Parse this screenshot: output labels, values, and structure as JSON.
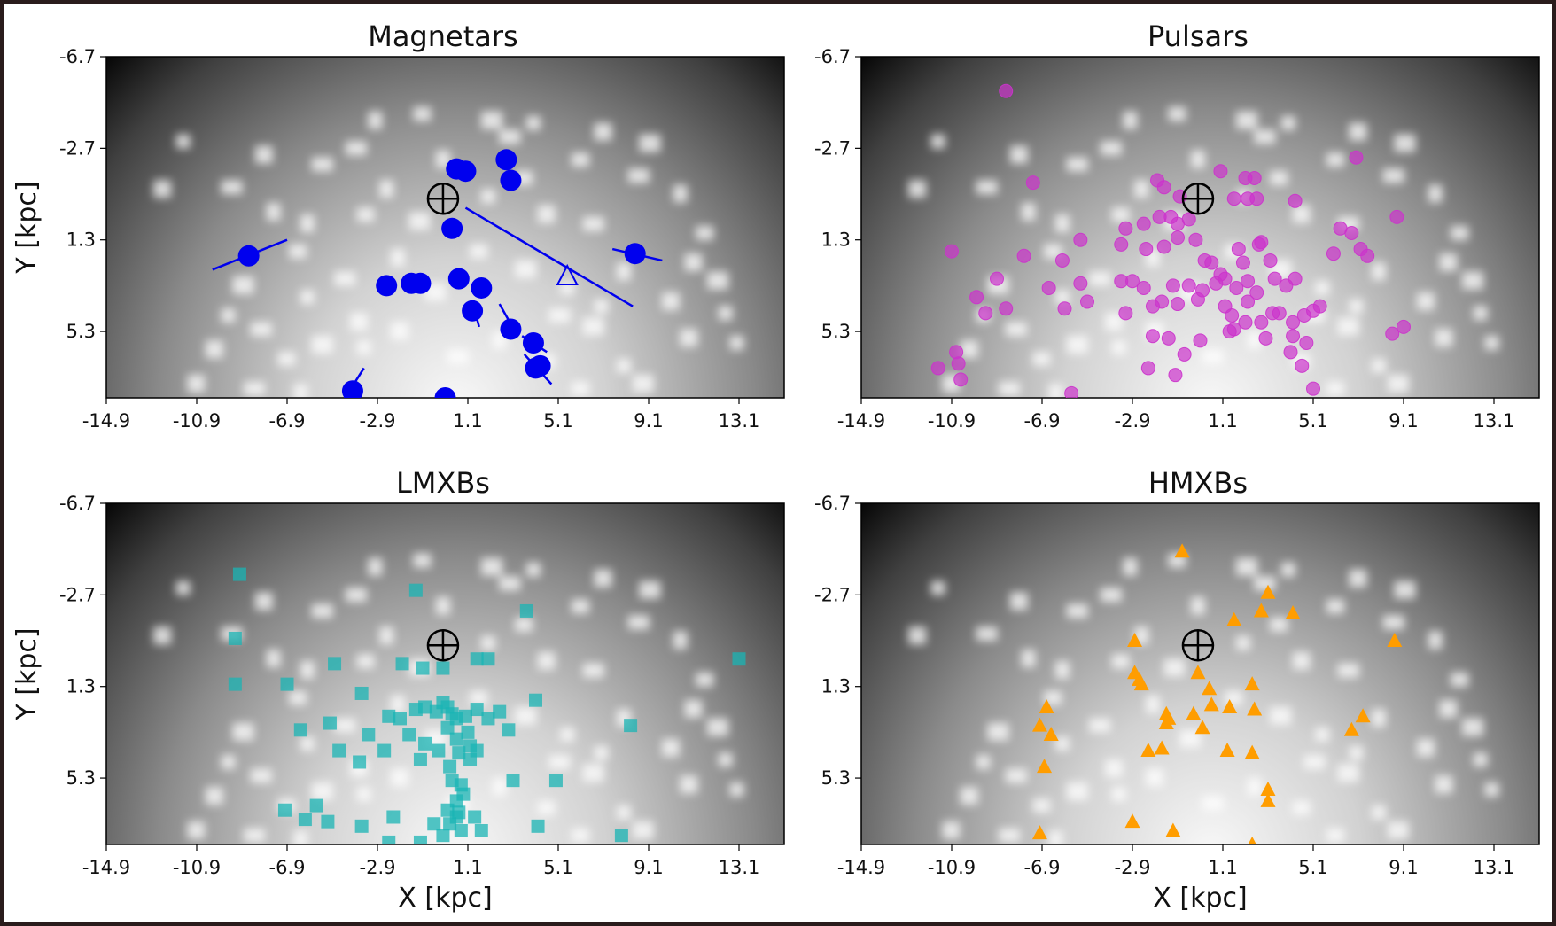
{
  "figure": {
    "xlabel": "X [kpc]",
    "ylabel": "Y [kpc]",
    "x_ticks": [
      "-14.9",
      "-10.9",
      "-6.9",
      "-2.9",
      "1.1",
      "5.1",
      "9.1",
      "13.1"
    ],
    "y_ticks": [
      "-6.7",
      "-2.7",
      "1.3",
      "5.3"
    ]
  },
  "chart_data": [
    {
      "type": "scatter",
      "title": "Magnetars",
      "xlim": [
        -14.9,
        15.1
      ],
      "ylim": [
        8.2,
        -6.7
      ],
      "marker": "circle",
      "color": "#0000ee",
      "earth": {
        "x": 0.0,
        "y": -0.5
      },
      "points": [
        {
          "x": 0.6,
          "y": -1.8
        },
        {
          "x": 1.0,
          "y": -1.7
        },
        {
          "x": 2.8,
          "y": -2.2
        },
        {
          "x": 3.0,
          "y": -1.3
        },
        {
          "x": 0.4,
          "y": 0.8
        },
        {
          "x": -8.6,
          "y": 2.0
        },
        {
          "x": 8.5,
          "y": 1.9
        },
        {
          "x": -2.5,
          "y": 3.3
        },
        {
          "x": -1.4,
          "y": 3.2
        },
        {
          "x": -1.0,
          "y": 3.2
        },
        {
          "x": 0.7,
          "y": 3.0
        },
        {
          "x": 1.7,
          "y": 3.4
        },
        {
          "x": 1.3,
          "y": 4.4
        },
        {
          "x": 3.0,
          "y": 5.2
        },
        {
          "x": 4.0,
          "y": 5.8
        },
        {
          "x": 4.1,
          "y": 6.9
        },
        {
          "x": 4.3,
          "y": 6.8
        },
        {
          "x": -4.0,
          "y": 7.9
        },
        {
          "x": 0.1,
          "y": 8.2
        }
      ],
      "error_bars": [
        {
          "x1": -10.2,
          "y1": 2.6,
          "x2": -6.9,
          "y2": 1.3
        },
        {
          "x1": 7.5,
          "y1": 1.7,
          "x2": 9.7,
          "y2": 2.2
        },
        {
          "x1": -1.5,
          "y1": 3.6,
          "x2": -1.0,
          "y2": 2.8
        },
        {
          "x1": 1.3,
          "y1": 4.0,
          "x2": 1.6,
          "y2": 5.1
        },
        {
          "x1": 2.5,
          "y1": 4.1,
          "x2": 3.3,
          "y2": 5.5
        },
        {
          "x1": 3.5,
          "y1": 5.5,
          "x2": 4.6,
          "y2": 6.2
        },
        {
          "x1": 3.6,
          "y1": 6.3,
          "x2": 4.8,
          "y2": 7.6
        },
        {
          "x1": -4.4,
          "y1": 8.3,
          "x2": -3.5,
          "y2": 6.9
        }
      ],
      "limit_marker": {
        "x": 5.5,
        "y": 2.9
      },
      "limit_line": {
        "x1": 1.0,
        "y1": -0.1,
        "x2": 8.4,
        "y2": 4.2
      }
    },
    {
      "type": "scatter",
      "title": "Pulsars",
      "xlim": [
        -14.9,
        15.1
      ],
      "ylim": [
        8.2,
        -6.7
      ],
      "marker": "circle",
      "color": "#cc33cc",
      "earth": {
        "x": 0.0,
        "y": -0.5
      },
      "points": [
        {
          "x": -8.5,
          "y": -5.2
        },
        {
          "x": 7.0,
          "y": -2.3
        },
        {
          "x": -7.3,
          "y": -1.2
        },
        {
          "x": -1.8,
          "y": -1.3
        },
        {
          "x": 1.0,
          "y": -1.7
        },
        {
          "x": 2.1,
          "y": -1.4
        },
        {
          "x": 2.5,
          "y": -1.4
        },
        {
          "x": -1.5,
          "y": -1.0
        },
        {
          "x": 1.6,
          "y": -0.5
        },
        {
          "x": 2.2,
          "y": -0.5
        },
        {
          "x": 2.6,
          "y": -0.5
        },
        {
          "x": 4.3,
          "y": -0.4
        },
        {
          "x": -0.8,
          "y": -0.6
        },
        {
          "x": -1.7,
          "y": 0.3
        },
        {
          "x": -1.2,
          "y": 0.3
        },
        {
          "x": -0.9,
          "y": 0.6
        },
        {
          "x": -2.4,
          "y": 0.6
        },
        {
          "x": -0.4,
          "y": 0.4
        },
        {
          "x": -3.2,
          "y": 0.8
        },
        {
          "x": -5.2,
          "y": 1.3
        },
        {
          "x": 6.3,
          "y": 0.8
        },
        {
          "x": 6.8,
          "y": 1.0
        },
        {
          "x": 8.8,
          "y": 0.3
        },
        {
          "x": 2.8,
          "y": 1.4
        },
        {
          "x": -10.9,
          "y": 1.8
        },
        {
          "x": -7.7,
          "y": 2.0
        },
        {
          "x": -6.0,
          "y": 2.2
        },
        {
          "x": -3.4,
          "y": 1.5
        },
        {
          "x": -2.3,
          "y": 1.7
        },
        {
          "x": -1.5,
          "y": 1.6
        },
        {
          "x": -0.9,
          "y": 1.2
        },
        {
          "x": -0.1,
          "y": 1.3
        },
        {
          "x": 0.3,
          "y": 2.2
        },
        {
          "x": 0.6,
          "y": 2.3
        },
        {
          "x": 1.0,
          "y": 2.8
        },
        {
          "x": 1.8,
          "y": 1.7
        },
        {
          "x": 2.0,
          "y": 2.3
        },
        {
          "x": 2.7,
          "y": 1.5
        },
        {
          "x": 3.2,
          "y": 2.2
        },
        {
          "x": 6.0,
          "y": 1.9
        },
        {
          "x": 7.2,
          "y": 1.7
        },
        {
          "x": 7.5,
          "y": 2.0
        },
        {
          "x": -8.9,
          "y": 3.0
        },
        {
          "x": -9.8,
          "y": 3.8
        },
        {
          "x": -6.6,
          "y": 3.4
        },
        {
          "x": -5.2,
          "y": 3.2
        },
        {
          "x": -3.4,
          "y": 3.1
        },
        {
          "x": -2.9,
          "y": 3.1
        },
        {
          "x": -2.4,
          "y": 3.4
        },
        {
          "x": -1.1,
          "y": 3.3
        },
        {
          "x": -0.4,
          "y": 3.3
        },
        {
          "x": 0.2,
          "y": 3.5
        },
        {
          "x": 0.8,
          "y": 3.2
        },
        {
          "x": 1.2,
          "y": 3.0
        },
        {
          "x": 1.7,
          "y": 3.4
        },
        {
          "x": 2.2,
          "y": 3.1
        },
        {
          "x": 2.6,
          "y": 3.6
        },
        {
          "x": 3.4,
          "y": 3.0
        },
        {
          "x": 3.9,
          "y": 3.3
        },
        {
          "x": 4.3,
          "y": 3.0
        },
        {
          "x": 1.2,
          "y": 4.2
        },
        {
          "x": 2.2,
          "y": 4.0
        },
        {
          "x": 3.3,
          "y": 4.5
        },
        {
          "x": 4.7,
          "y": 4.6
        },
        {
          "x": 5.1,
          "y": 4.4
        },
        {
          "x": 5.4,
          "y": 4.2
        },
        {
          "x": -9.4,
          "y": 4.5
        },
        {
          "x": -8.5,
          "y": 4.3
        },
        {
          "x": -5.9,
          "y": 4.3
        },
        {
          "x": -4.9,
          "y": 4.0
        },
        {
          "x": -3.2,
          "y": 4.5
        },
        {
          "x": -2.0,
          "y": 4.2
        },
        {
          "x": -1.6,
          "y": 4.0
        },
        {
          "x": -0.9,
          "y": 4.1
        },
        {
          "x": 0.0,
          "y": 3.9
        },
        {
          "x": 1.5,
          "y": 4.6
        },
        {
          "x": 2.8,
          "y": 4.9
        },
        {
          "x": 3.6,
          "y": 4.5
        },
        {
          "x": 4.2,
          "y": 4.9
        },
        {
          "x": -2.0,
          "y": 5.5
        },
        {
          "x": -1.3,
          "y": 5.6
        },
        {
          "x": 0.1,
          "y": 5.7
        },
        {
          "x": 1.4,
          "y": 5.3
        },
        {
          "x": 1.6,
          "y": 5.2
        },
        {
          "x": 2.1,
          "y": 4.9
        },
        {
          "x": 3.0,
          "y": 5.6
        },
        {
          "x": 4.2,
          "y": 5.5
        },
        {
          "x": 4.8,
          "y": 5.8
        },
        {
          "x": 8.6,
          "y": 5.4
        },
        {
          "x": 9.1,
          "y": 5.1
        },
        {
          "x": -10.7,
          "y": 6.2
        },
        {
          "x": -10.6,
          "y": 6.7
        },
        {
          "x": -11.5,
          "y": 6.9
        },
        {
          "x": -10.5,
          "y": 7.4
        },
        {
          "x": -1.0,
          "y": 7.2
        },
        {
          "x": -2.2,
          "y": 6.9
        },
        {
          "x": -0.6,
          "y": 6.3
        },
        {
          "x": 4.1,
          "y": 6.2
        },
        {
          "x": 4.6,
          "y": 6.8
        },
        {
          "x": 5.1,
          "y": 7.8
        },
        {
          "x": -5.6,
          "y": 8.0
        }
      ]
    },
    {
      "type": "scatter",
      "title": "LMXBs",
      "xlim": [
        -14.9,
        15.1
      ],
      "ylim": [
        8.2,
        -6.7
      ],
      "marker": "square",
      "color": "#19b4b4",
      "earth": {
        "x": 0.0,
        "y": -0.5
      },
      "points": [
        {
          "x": -9.0,
          "y": -3.6
        },
        {
          "x": -1.2,
          "y": -2.9
        },
        {
          "x": 3.7,
          "y": -2.0
        },
        {
          "x": -9.2,
          "y": -0.8
        },
        {
          "x": 13.1,
          "y": 0.1
        },
        {
          "x": -9.2,
          "y": 1.2
        },
        {
          "x": -6.9,
          "y": 1.2
        },
        {
          "x": -4.8,
          "y": 0.3
        },
        {
          "x": -1.8,
          "y": 0.3
        },
        {
          "x": -0.9,
          "y": 0.5
        },
        {
          "x": 0.0,
          "y": 0.5
        },
        {
          "x": 1.5,
          "y": 0.1
        },
        {
          "x": 2.0,
          "y": 0.1
        },
        {
          "x": -3.6,
          "y": 1.6
        },
        {
          "x": 4.1,
          "y": 1.9
        },
        {
          "x": 8.3,
          "y": 3.0
        },
        {
          "x": -6.3,
          "y": 3.2
        },
        {
          "x": -5.0,
          "y": 2.9
        },
        {
          "x": -3.3,
          "y": 3.4
        },
        {
          "x": -2.4,
          "y": 2.6
        },
        {
          "x": -1.9,
          "y": 2.7
        },
        {
          "x": -1.2,
          "y": 2.3
        },
        {
          "x": -0.8,
          "y": 2.2
        },
        {
          "x": -0.3,
          "y": 2.4
        },
        {
          "x": 0.0,
          "y": 2.0
        },
        {
          "x": 0.2,
          "y": 2.2
        },
        {
          "x": 0.4,
          "y": 2.5
        },
        {
          "x": 0.6,
          "y": 2.7
        },
        {
          "x": 1.0,
          "y": 2.6
        },
        {
          "x": 1.5,
          "y": 2.3
        },
        {
          "x": 2.0,
          "y": 2.7
        },
        {
          "x": 2.5,
          "y": 2.4
        },
        {
          "x": 2.9,
          "y": 3.2
        },
        {
          "x": -1.5,
          "y": 3.4
        },
        {
          "x": -0.8,
          "y": 3.8
        },
        {
          "x": 0.2,
          "y": 3.1
        },
        {
          "x": 0.6,
          "y": 3.6
        },
        {
          "x": 1.1,
          "y": 3.3
        },
        {
          "x": 1.2,
          "y": 3.9
        },
        {
          "x": 0.7,
          "y": 4.2
        },
        {
          "x": 1.2,
          "y": 4.5
        },
        {
          "x": 1.5,
          "y": 4.1
        },
        {
          "x": -4.6,
          "y": 4.1
        },
        {
          "x": -3.7,
          "y": 4.6
        },
        {
          "x": -2.6,
          "y": 4.1
        },
        {
          "x": -1.0,
          "y": 4.5
        },
        {
          "x": -0.2,
          "y": 4.1
        },
        {
          "x": 0.3,
          "y": 4.8
        },
        {
          "x": 0.4,
          "y": 5.4
        },
        {
          "x": 0.8,
          "y": 5.6
        },
        {
          "x": 0.9,
          "y": 6.0
        },
        {
          "x": 0.6,
          "y": 6.3
        },
        {
          "x": 0.2,
          "y": 6.7
        },
        {
          "x": 0.6,
          "y": 7.0
        },
        {
          "x": 0.8,
          "y": 7.6
        },
        {
          "x": 0.3,
          "y": 7.3
        },
        {
          "x": 0.7,
          "y": 6.8
        },
        {
          "x": 1.4,
          "y": 7.0
        },
        {
          "x": 1.7,
          "y": 7.6
        },
        {
          "x": 3.1,
          "y": 5.4
        },
        {
          "x": 5.0,
          "y": 5.4
        },
        {
          "x": -7.0,
          "y": 6.7
        },
        {
          "x": -5.6,
          "y": 6.5
        },
        {
          "x": -5.1,
          "y": 7.2
        },
        {
          "x": -6.1,
          "y": 7.1
        },
        {
          "x": -3.6,
          "y": 7.4
        },
        {
          "x": -2.2,
          "y": 7.0
        },
        {
          "x": -0.4,
          "y": 7.3
        },
        {
          "x": -2.4,
          "y": 8.1
        },
        {
          "x": -1.0,
          "y": 8.1
        },
        {
          "x": 0.0,
          "y": 7.8
        },
        {
          "x": 4.2,
          "y": 7.4
        },
        {
          "x": 7.9,
          "y": 7.8
        }
      ]
    },
    {
      "type": "scatter",
      "title": "HMXBs",
      "xlim": [
        -14.9,
        15.1
      ],
      "ylim": [
        8.2,
        -6.7
      ],
      "marker": "triangle",
      "color": "#ff9d00",
      "earth": {
        "x": 0.0,
        "y": -0.5
      },
      "points": [
        {
          "x": -0.7,
          "y": -4.6
        },
        {
          "x": 3.1,
          "y": -2.8
        },
        {
          "x": 2.8,
          "y": -2.0
        },
        {
          "x": 4.2,
          "y": -1.9
        },
        {
          "x": 1.6,
          "y": -1.6
        },
        {
          "x": 8.7,
          "y": -0.7
        },
        {
          "x": -2.8,
          "y": -0.7
        },
        {
          "x": -2.8,
          "y": 0.7
        },
        {
          "x": -2.6,
          "y": 1.0
        },
        {
          "x": -2.5,
          "y": 1.2
        },
        {
          "x": 0.0,
          "y": 0.7
        },
        {
          "x": 0.5,
          "y": 1.4
        },
        {
          "x": 2.4,
          "y": 1.2
        },
        {
          "x": -6.7,
          "y": 2.2
        },
        {
          "x": -7.0,
          "y": 3.0
        },
        {
          "x": -6.5,
          "y": 3.4
        },
        {
          "x": -1.4,
          "y": 2.5
        },
        {
          "x": -1.3,
          "y": 2.7
        },
        {
          "x": -1.4,
          "y": 2.9
        },
        {
          "x": -0.2,
          "y": 2.5
        },
        {
          "x": 0.6,
          "y": 2.1
        },
        {
          "x": 1.4,
          "y": 2.2
        },
        {
          "x": 2.5,
          "y": 2.3
        },
        {
          "x": 7.3,
          "y": 2.6
        },
        {
          "x": 6.8,
          "y": 3.2
        },
        {
          "x": 0.2,
          "y": 3.1
        },
        {
          "x": -2.2,
          "y": 4.1
        },
        {
          "x": -1.6,
          "y": 4.0
        },
        {
          "x": 1.3,
          "y": 4.1
        },
        {
          "x": -6.8,
          "y": 4.8
        },
        {
          "x": 2.4,
          "y": 4.2
        },
        {
          "x": 3.1,
          "y": 5.8
        },
        {
          "x": 3.1,
          "y": 6.3
        },
        {
          "x": -2.9,
          "y": 7.2
        },
        {
          "x": -1.1,
          "y": 7.6
        },
        {
          "x": 2.4,
          "y": 8.2
        },
        {
          "x": -7.0,
          "y": 7.7
        }
      ]
    }
  ]
}
